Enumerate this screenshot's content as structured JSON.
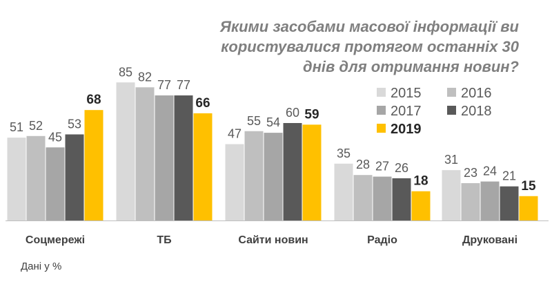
{
  "chart_data": {
    "type": "bar",
    "title": "Якими засобами масової інформації ви користувалися протягом останніх 30 днів для отримання новин?",
    "title_lines": [
      "Якими засобами масової інформації ви",
      "користувалися протягом останніх 30",
      "днів для отримання новин?"
    ],
    "categories": [
      "Соцмережі",
      "ТБ",
      "Сайти новин",
      "Радіо",
      "Друковані"
    ],
    "series": [
      {
        "name": "2015",
        "color": "#d9d9d9",
        "values": [
          51,
          85,
          47,
          35,
          31
        ]
      },
      {
        "name": "2016",
        "color": "#bfbfbf",
        "values": [
          52,
          82,
          55,
          28,
          23
        ]
      },
      {
        "name": "2017",
        "color": "#a6a6a6",
        "values": [
          45,
          77,
          54,
          27,
          24
        ]
      },
      {
        "name": "2018",
        "color": "#595959",
        "values": [
          53,
          77,
          60,
          26,
          21
        ]
      },
      {
        "name": "2019",
        "color": "#ffc000",
        "values": [
          68,
          66,
          59,
          18,
          15
        ],
        "highlight": true
      }
    ],
    "xlabel": "",
    "ylabel": "",
    "ylim": [
      0,
      100
    ],
    "grid": false,
    "legend_position": "right",
    "label_color": "#595959",
    "highlight_label_color": "#262626",
    "baseline_color": "#bfbfbf"
  },
  "footnote": "Дані у %"
}
